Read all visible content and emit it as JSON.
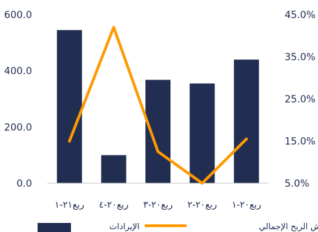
{
  "chart_data": {
    "type": "bar",
    "title": "",
    "direction": "rtl",
    "categories": [
      "ربع٢١-١",
      "ربع٢٠-٤",
      "ربع٢٠-٣",
      "ربع٢٠-٢",
      "ربع٢٠-١"
    ],
    "series": [
      {
        "name": "الإيرادات",
        "type": "bar",
        "axis": "left",
        "color": "#212e52",
        "values": [
          545,
          100,
          368,
          355,
          440
        ]
      },
      {
        "name": "هامش الربح الإجمالي",
        "type": "line",
        "axis": "right",
        "color": "#ff9900",
        "values": [
          15.0,
          42.0,
          12.5,
          5.0,
          15.5
        ]
      }
    ],
    "y_left": {
      "min": 0,
      "max": 600,
      "ticks": [
        0,
        200,
        400,
        600
      ],
      "tick_labels": [
        "0.0",
        "200.0",
        "400.0",
        "600.0"
      ]
    },
    "y_right": {
      "min": 5,
      "max": 45,
      "ticks": [
        5,
        15,
        25,
        35,
        45
      ],
      "tick_labels": [
        "5.0%",
        "15.0%",
        "25.0%",
        "35.0%",
        "45.0%"
      ]
    },
    "grid": false,
    "legend_position": "bottom"
  }
}
